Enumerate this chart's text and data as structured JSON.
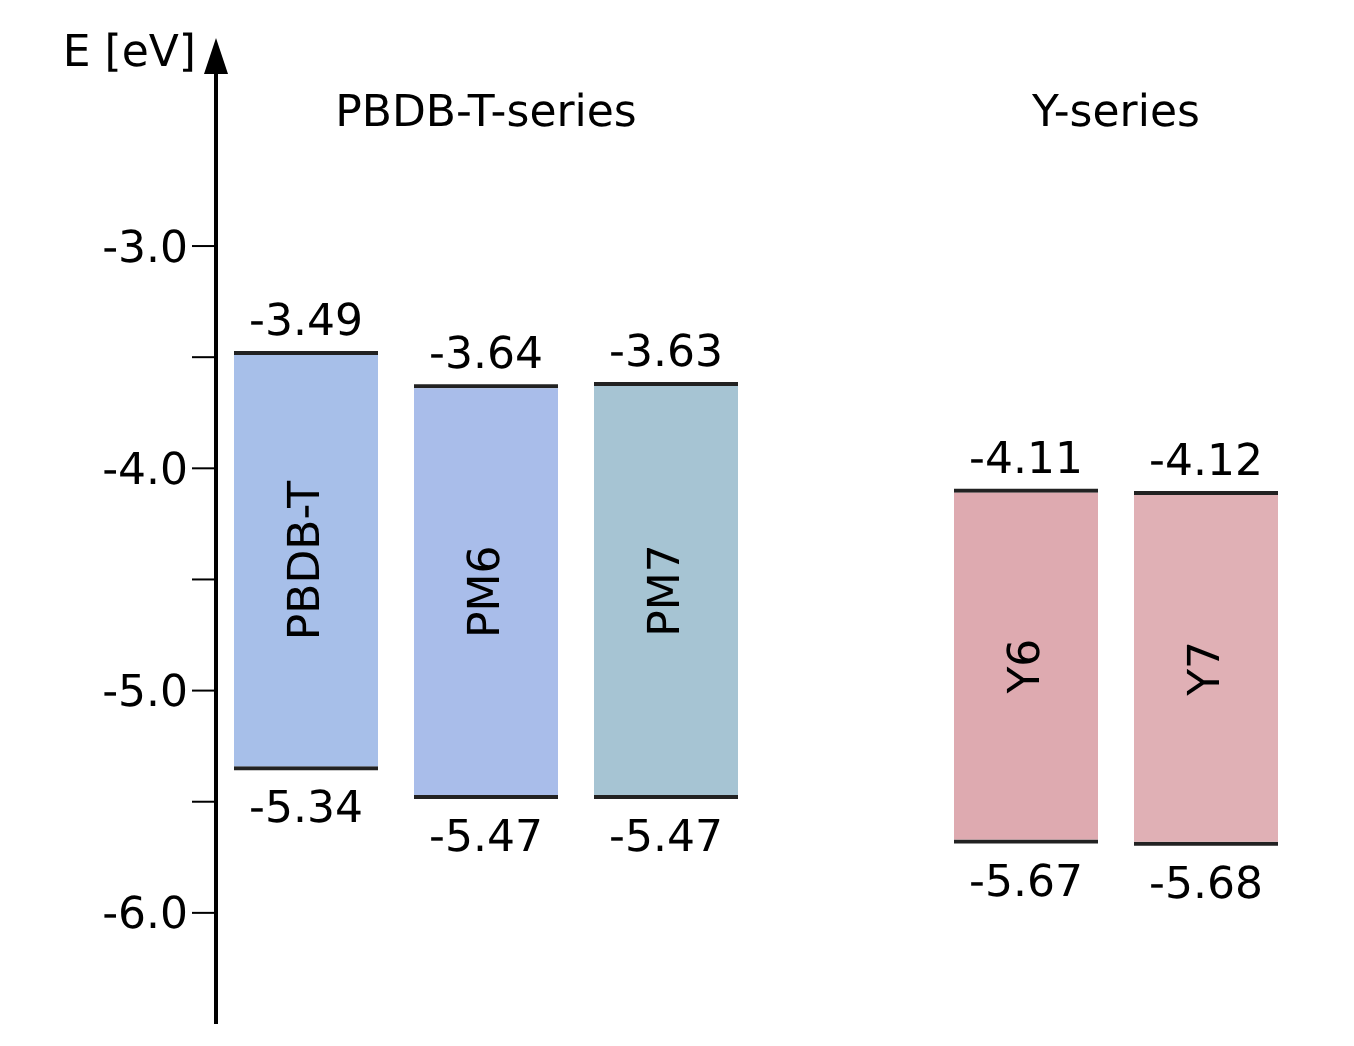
{
  "chart_data": {
    "type": "bar",
    "ylabel": "E [eV]",
    "categories": [
      "PBDB-T",
      "PM6",
      "PM7",
      null,
      "Y6",
      "Y7"
    ],
    "base": [
      -5.34,
      -5.47,
      -5.47,
      null,
      -5.67,
      -5.68
    ],
    "values": [
      1.85,
      1.83,
      1.84,
      null,
      1.56,
      1.56
    ],
    "colors": [
      "#a7bfe9",
      "#a9bdea",
      "#a6c4d3",
      "#ffffff",
      "#deaab0",
      "#e0b0b5"
    ],
    "ylim": [
      -6.5,
      -2.1
    ],
    "yticks": [
      {
        "value": -3.0,
        "label": "-3.0"
      },
      {
        "value": -3.5,
        "label": null
      },
      {
        "value": -4.0,
        "label": "-4.0"
      },
      {
        "value": -4.5,
        "label": null
      },
      {
        "value": -5.0,
        "label": "-5.0"
      },
      {
        "value": -5.5,
        "label": null
      },
      {
        "value": -6.0,
        "label": "-6.0"
      }
    ],
    "annotations": [
      "PBDB-T-series",
      "Y-series",
      {
        "text": "-3.49",
        "x": "PBDB-T",
        "y": -3.49
      },
      {
        "text": "-5.34",
        "x": "PBDB-T",
        "y": -5.34
      },
      {
        "text": "-3.64",
        "x": "PM6",
        "y": -3.64
      },
      {
        "text": "-5.47",
        "x": "PM6",
        "y": -5.47
      },
      {
        "text": "-3.63",
        "x": "PM7",
        "y": -3.63
      },
      {
        "text": "-5.47",
        "x": "PM7",
        "y": -5.47
      },
      {
        "text": "-4.11",
        "x": "Y6",
        "y": -4.11
      },
      {
        "text": "-5.67",
        "x": "Y6",
        "y": -5.67
      },
      {
        "text": "-4.12",
        "x": "Y7",
        "y": -4.12
      },
      {
        "text": "-5.68",
        "x": "Y7",
        "y": -5.68
      }
    ],
    "grid": false,
    "legend": false
  }
}
